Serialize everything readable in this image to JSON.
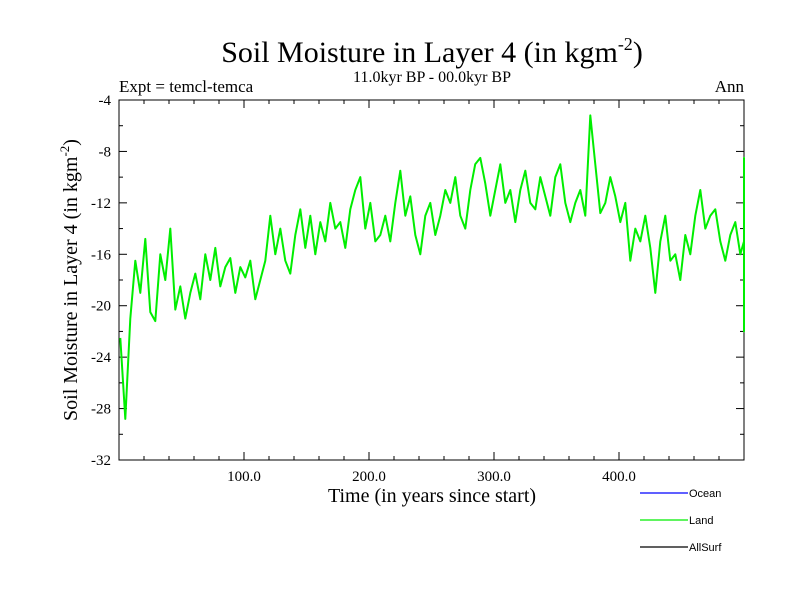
{
  "chart_data": {
    "type": "line",
    "title_main": "Soil Moisture in Layer 4 (in kgm",
    "title_sup": "-2",
    "title_close": ")",
    "subtitle": "11.0kyr BP - 00.0kyr BP",
    "expt_label": "Expt = temcl-temca",
    "season_label": "Ann",
    "xlabel": "Time (in years since start)",
    "ylabel_main": "Soil Moisture in Layer 4 (in kgm",
    "ylabel_sup": "-2",
    "ylabel_close": ")",
    "xlim": [
      0,
      500
    ],
    "ylim": [
      -32,
      -4
    ],
    "x_ticks": [
      100,
      200,
      300,
      400
    ],
    "x_tick_labels": [
      "100.0",
      "200.0",
      "300.0",
      "400.0"
    ],
    "y_ticks": [
      -4,
      -8,
      -12,
      -16,
      -20,
      -24,
      -28,
      -32
    ],
    "y_tick_labels": [
      "-4",
      "-8",
      "-12",
      "-16",
      "-20",
      "-24",
      "-28",
      "-32"
    ],
    "legend": [
      {
        "name": "Ocean",
        "color": "#0000ff"
      },
      {
        "name": "Land",
        "color": "#00ee00"
      },
      {
        "name": "AllSurf",
        "color": "#000000"
      }
    ],
    "series": [
      {
        "name": "Land",
        "color": "#00ee00",
        "x_start": 1,
        "x_step": 4,
        "values": [
          -22.5,
          -28.8,
          -21,
          -16.5,
          -19,
          -14.8,
          -20.5,
          -21.2,
          -16,
          -18,
          -14,
          -20.3,
          -18.5,
          -21,
          -19,
          -17.5,
          -19.5,
          -16,
          -18,
          -15.5,
          -18.5,
          -17,
          -16.3,
          -19,
          -17,
          -17.8,
          -16.5,
          -19.5,
          -18,
          -16.5,
          -13,
          -16,
          -14,
          -16.5,
          -17.5,
          -14.5,
          -12.5,
          -15.5,
          -13,
          -16,
          -13.5,
          -15,
          -12,
          -14,
          -13.5,
          -15.5,
          -12.5,
          -11,
          -10,
          -14,
          -12,
          -15,
          -14.5,
          -13,
          -15,
          -12,
          -9.5,
          -13,
          -11.5,
          -14.5,
          -16,
          -13,
          -12,
          -14.5,
          -13,
          -11,
          -12,
          -10,
          -13,
          -14,
          -11,
          -9,
          -8.5,
          -10.5,
          -13,
          -11,
          -9,
          -12,
          -11,
          -13.5,
          -11,
          -9.5,
          -12,
          -12.5,
          -10,
          -11.5,
          -13,
          -10,
          -9,
          -12,
          -13.5,
          -12,
          -11,
          -13,
          -5.2,
          -9,
          -12.8,
          -12,
          -10,
          -11.5,
          -13.5,
          -12,
          -16.5,
          -14,
          -15,
          -13,
          -15.5,
          -19,
          -15,
          -13,
          -16.5,
          -16,
          -18,
          -14.5,
          -16,
          -13,
          -11,
          -14,
          -13,
          -12.5,
          -15,
          -16.5,
          -14.5,
          -13.5,
          -16,
          -15,
          -13,
          -12,
          -14,
          -13.5,
          -11,
          -15,
          -13,
          -14,
          -16,
          -13,
          -14,
          -12,
          -15.5,
          -13,
          -16,
          -14,
          -17,
          -16,
          -17.5,
          -14,
          -16.5,
          -18,
          -17,
          -15,
          -13,
          -15.5,
          -17,
          -19.5,
          -17,
          -15,
          -16.5,
          -13,
          -16.5,
          -14,
          -17.5,
          -19,
          -17,
          -15.5,
          -13.5,
          -16.5,
          -18,
          -16,
          -14.5,
          -17,
          -16,
          -20.5,
          -22,
          -19.5,
          -17.5,
          -19,
          -16,
          -18,
          -17,
          -15,
          -13.5,
          -15.5,
          -17,
          -16,
          -17.5,
          -16,
          -15.5,
          -13,
          -14,
          -15,
          -16,
          -14,
          -14,
          -13.5,
          -12.5,
          -12,
          -11,
          -9,
          -10,
          -10.5,
          -9.5,
          -8.5,
          -9.5,
          -11,
          -9,
          -10.5,
          -10.5,
          -12,
          -11,
          -12.5,
          -14,
          -11.5,
          -14,
          -12,
          -13,
          -15.5,
          -17,
          -15,
          -16,
          -16.5,
          -14,
          -13,
          -12,
          -10.5,
          -11,
          -12.5,
          -14.5,
          -12,
          -13,
          -11,
          -14.5,
          -15.5,
          -17,
          -19,
          -18.5,
          -16,
          -17.5,
          -16,
          -17,
          -16.5,
          -15,
          -17,
          -15,
          -16,
          -14.5,
          -15.5,
          -15,
          -14,
          -16,
          -15.5,
          -14,
          -14,
          -13,
          -14.5,
          -16,
          -14,
          -13,
          -14.5,
          -12,
          -10.5,
          -12.5,
          -9,
          -10,
          -10.5,
          -12,
          -12.5,
          -11.5,
          -12,
          -13.5,
          -14,
          -13.5,
          -12.5,
          -14,
          -13.5,
          -14.5
        ]
      }
    ]
  }
}
